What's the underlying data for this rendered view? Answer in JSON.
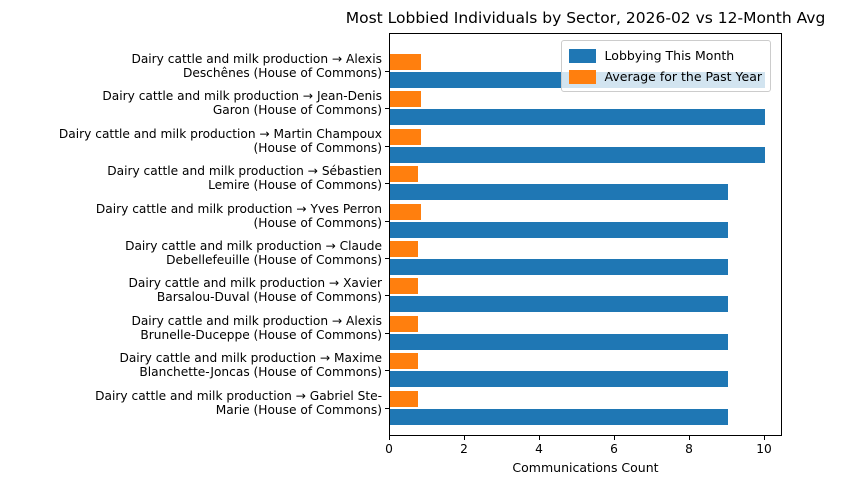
{
  "chart_data": {
    "type": "bar",
    "orientation": "horizontal",
    "title": "Most Lobbied Individuals by Sector, 2026-02 vs 12-Month Avg",
    "xlabel": "Communications Count",
    "ylabel": "",
    "xlim": [
      0,
      10.45
    ],
    "xticks": [
      0,
      2,
      4,
      6,
      8,
      10
    ],
    "grid": false,
    "legend_position": "upper right",
    "categories": [
      "Dairy cattle and milk production → Alexis\nDeschênes (House of Commons)",
      "Dairy cattle and milk production → Jean-Denis\nGaron (House of Commons)",
      "Dairy cattle and milk production → Martin Champoux\n(House of Commons)",
      "Dairy cattle and milk production → Sébastien\nLemire (House of Commons)",
      "Dairy cattle and milk production → Yves Perron\n(House of Commons)",
      "Dairy cattle and milk production → Claude\nDebellefeuille (House of Commons)",
      "Dairy cattle and milk production → Xavier\nBarsalou-Duval (House of Commons)",
      "Dairy cattle and milk production → Alexis\nBrunelle-Duceppe (House of Commons)",
      "Dairy cattle and milk production → Maxime\nBlanchette-Joncas (House of Commons)",
      "Dairy cattle and milk production → Gabriel Ste-\nMarie (House of Commons)"
    ],
    "series": [
      {
        "name": "Lobbying This Month",
        "color": "#1f77b4",
        "values": [
          10,
          10,
          10,
          9,
          9,
          9,
          9,
          9,
          9,
          9
        ]
      },
      {
        "name": "Average for the Past Year",
        "color": "#ff7f0e",
        "values": [
          0.83,
          0.83,
          0.83,
          0.75,
          0.83,
          0.75,
          0.75,
          0.75,
          0.75,
          0.75
        ]
      }
    ]
  }
}
